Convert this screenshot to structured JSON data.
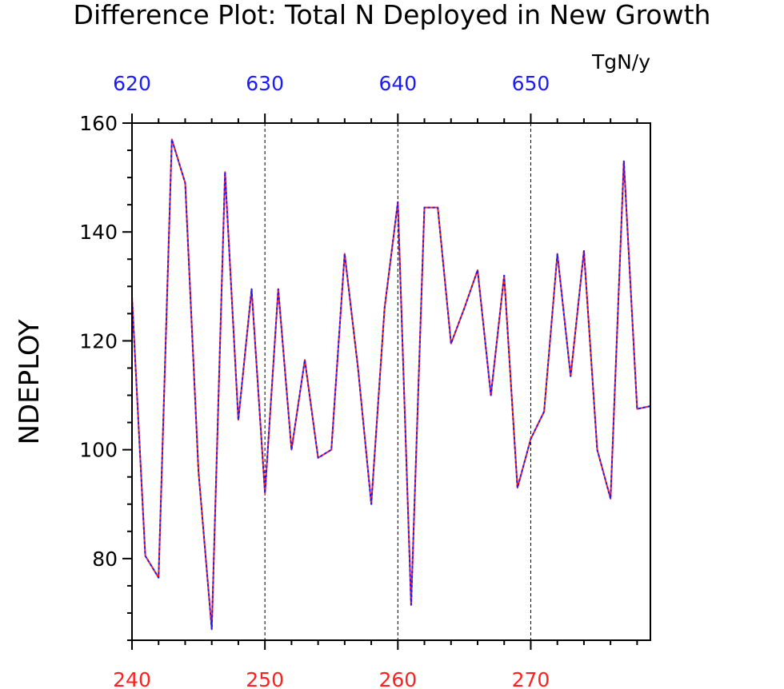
{
  "chart_data": {
    "type": "line",
    "title": "Difference Plot: Total N Deployed in New Growth",
    "ylabel": "NDEPLOY",
    "units": "TgN/y",
    "ylim": [
      65,
      160
    ],
    "yticks": [
      80,
      100,
      120,
      140,
      160
    ],
    "x_bottom": {
      "ticks": [
        "240",
        "250",
        "260",
        "270"
      ],
      "tick_values": [
        240,
        250,
        260,
        270
      ],
      "range": [
        240,
        279
      ],
      "color": "#ff2020"
    },
    "x_top": {
      "ticks": [
        "620",
        "630",
        "640",
        "650"
      ],
      "tick_values": [
        620,
        630,
        640,
        650
      ],
      "range": [
        620,
        659
      ],
      "color": "#1a1aff"
    },
    "grid_x": true,
    "series": [
      {
        "color": "#ff2020",
        "style": "solid",
        "x": [
          240,
          241,
          242,
          243,
          244,
          245,
          246,
          247,
          248,
          249,
          250,
          251,
          252,
          253,
          254,
          255,
          256,
          257,
          258,
          259,
          260,
          261,
          262,
          263,
          264,
          265,
          266,
          267,
          268,
          269,
          270,
          271,
          272,
          273,
          274,
          275,
          276,
          277,
          278,
          279
        ],
        "values": [
          128,
          80.5,
          76.5,
          157,
          149,
          96,
          67,
          151,
          105.5,
          129.5,
          92,
          129.5,
          100,
          116.5,
          98.5,
          100,
          136,
          115,
          90,
          126,
          145.5,
          71.5,
          144.5,
          144.5,
          119.5,
          126,
          133,
          110,
          132,
          93,
          102,
          107,
          136,
          113.5,
          136.5,
          100,
          91,
          153,
          107.5,
          108
        ]
      },
      {
        "color": "#1a1aff",
        "style": "dashed",
        "x": [
          620,
          621,
          622,
          623,
          624,
          625,
          626,
          627,
          628,
          629,
          630,
          631,
          632,
          633,
          634,
          635,
          636,
          637,
          638,
          639,
          640,
          641,
          642,
          643,
          644,
          645,
          646,
          647,
          648,
          649,
          650,
          651,
          652,
          653,
          654,
          655,
          656,
          657,
          658,
          659
        ],
        "values": [
          128,
          80.5,
          76.5,
          157,
          149,
          96,
          67,
          151,
          105.5,
          129.5,
          92,
          129.5,
          100,
          116.5,
          98.5,
          100,
          136,
          115,
          90,
          126,
          145.5,
          71.5,
          144.5,
          144.5,
          119.5,
          126,
          133,
          110,
          132,
          93,
          102,
          107,
          136,
          113.5,
          136.5,
          100,
          91,
          153,
          107.5,
          108
        ]
      }
    ]
  }
}
